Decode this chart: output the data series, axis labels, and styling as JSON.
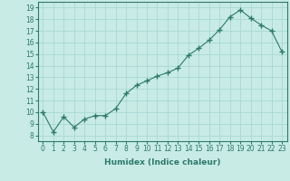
{
  "x": [
    0,
    1,
    2,
    3,
    4,
    5,
    6,
    7,
    8,
    9,
    10,
    11,
    12,
    13,
    14,
    15,
    16,
    17,
    18,
    19,
    20,
    21,
    22,
    23
  ],
  "y": [
    10.0,
    8.3,
    9.6,
    8.7,
    9.4,
    9.7,
    9.7,
    10.3,
    11.6,
    12.3,
    12.7,
    13.1,
    13.4,
    13.8,
    14.9,
    15.5,
    16.2,
    17.1,
    18.2,
    18.8,
    18.1,
    17.5,
    17.0,
    15.2
  ],
  "line_color": "#2d7a6b",
  "marker": "+",
  "marker_size": 4,
  "marker_lw": 1.0,
  "bg_color": "#c8ebe6",
  "grid_color": "#a8d8d2",
  "xlabel": "Humidex (Indice chaleur)",
  "ylim": [
    7.5,
    19.5
  ],
  "xlim": [
    -0.5,
    23.5
  ],
  "yticks": [
    8,
    9,
    10,
    11,
    12,
    13,
    14,
    15,
    16,
    17,
    18,
    19
  ],
  "xticks": [
    0,
    1,
    2,
    3,
    4,
    5,
    6,
    7,
    8,
    9,
    10,
    11,
    12,
    13,
    14,
    15,
    16,
    17,
    18,
    19,
    20,
    21,
    22,
    23
  ],
  "title_fontsize": 7,
  "label_fontsize": 6.5,
  "tick_fontsize": 5.5
}
